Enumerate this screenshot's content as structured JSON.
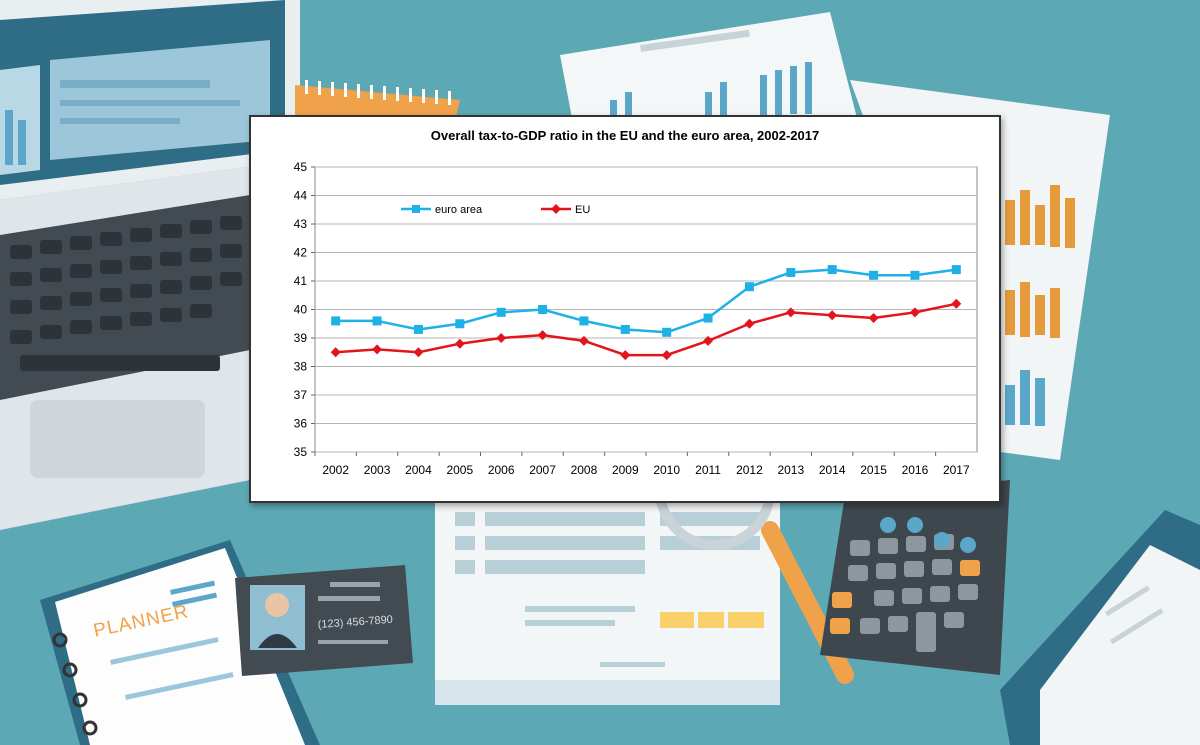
{
  "background": {
    "planner_label": "PLANNER",
    "phone_number": "(123)  456-7890"
  },
  "colors": {
    "desk": "#5ca9b5",
    "euro_area": "#1fb0e6",
    "eu": "#e3141c"
  },
  "chart_data": {
    "type": "line",
    "title": "Overall tax-to-GDP ratio in the EU and the euro area, 2002-2017",
    "xlabel": "",
    "ylabel": "",
    "categories": [
      "2002",
      "2003",
      "2004",
      "2005",
      "2006",
      "2007",
      "2008",
      "2009",
      "2010",
      "2011",
      "2012",
      "2013",
      "2014",
      "2015",
      "2016",
      "2017"
    ],
    "ylim": [
      35,
      45
    ],
    "yticks": [
      "35",
      "36",
      "37",
      "38",
      "39",
      "40",
      "41",
      "42",
      "43",
      "44",
      "45"
    ],
    "grid": true,
    "legend_position": "top-left",
    "series": [
      {
        "name": "euro area",
        "color": "#1fb0e6",
        "marker": "square",
        "values": [
          39.6,
          39.6,
          39.3,
          39.5,
          39.9,
          40.0,
          39.6,
          39.3,
          39.2,
          39.7,
          40.8,
          41.3,
          41.4,
          41.2,
          41.2,
          41.4
        ]
      },
      {
        "name": "EU",
        "color": "#e3141c",
        "marker": "diamond",
        "values": [
          38.5,
          38.6,
          38.5,
          38.8,
          39.0,
          39.1,
          38.9,
          38.4,
          38.4,
          38.9,
          39.5,
          39.9,
          39.8,
          39.7,
          39.9,
          40.2
        ]
      }
    ]
  }
}
